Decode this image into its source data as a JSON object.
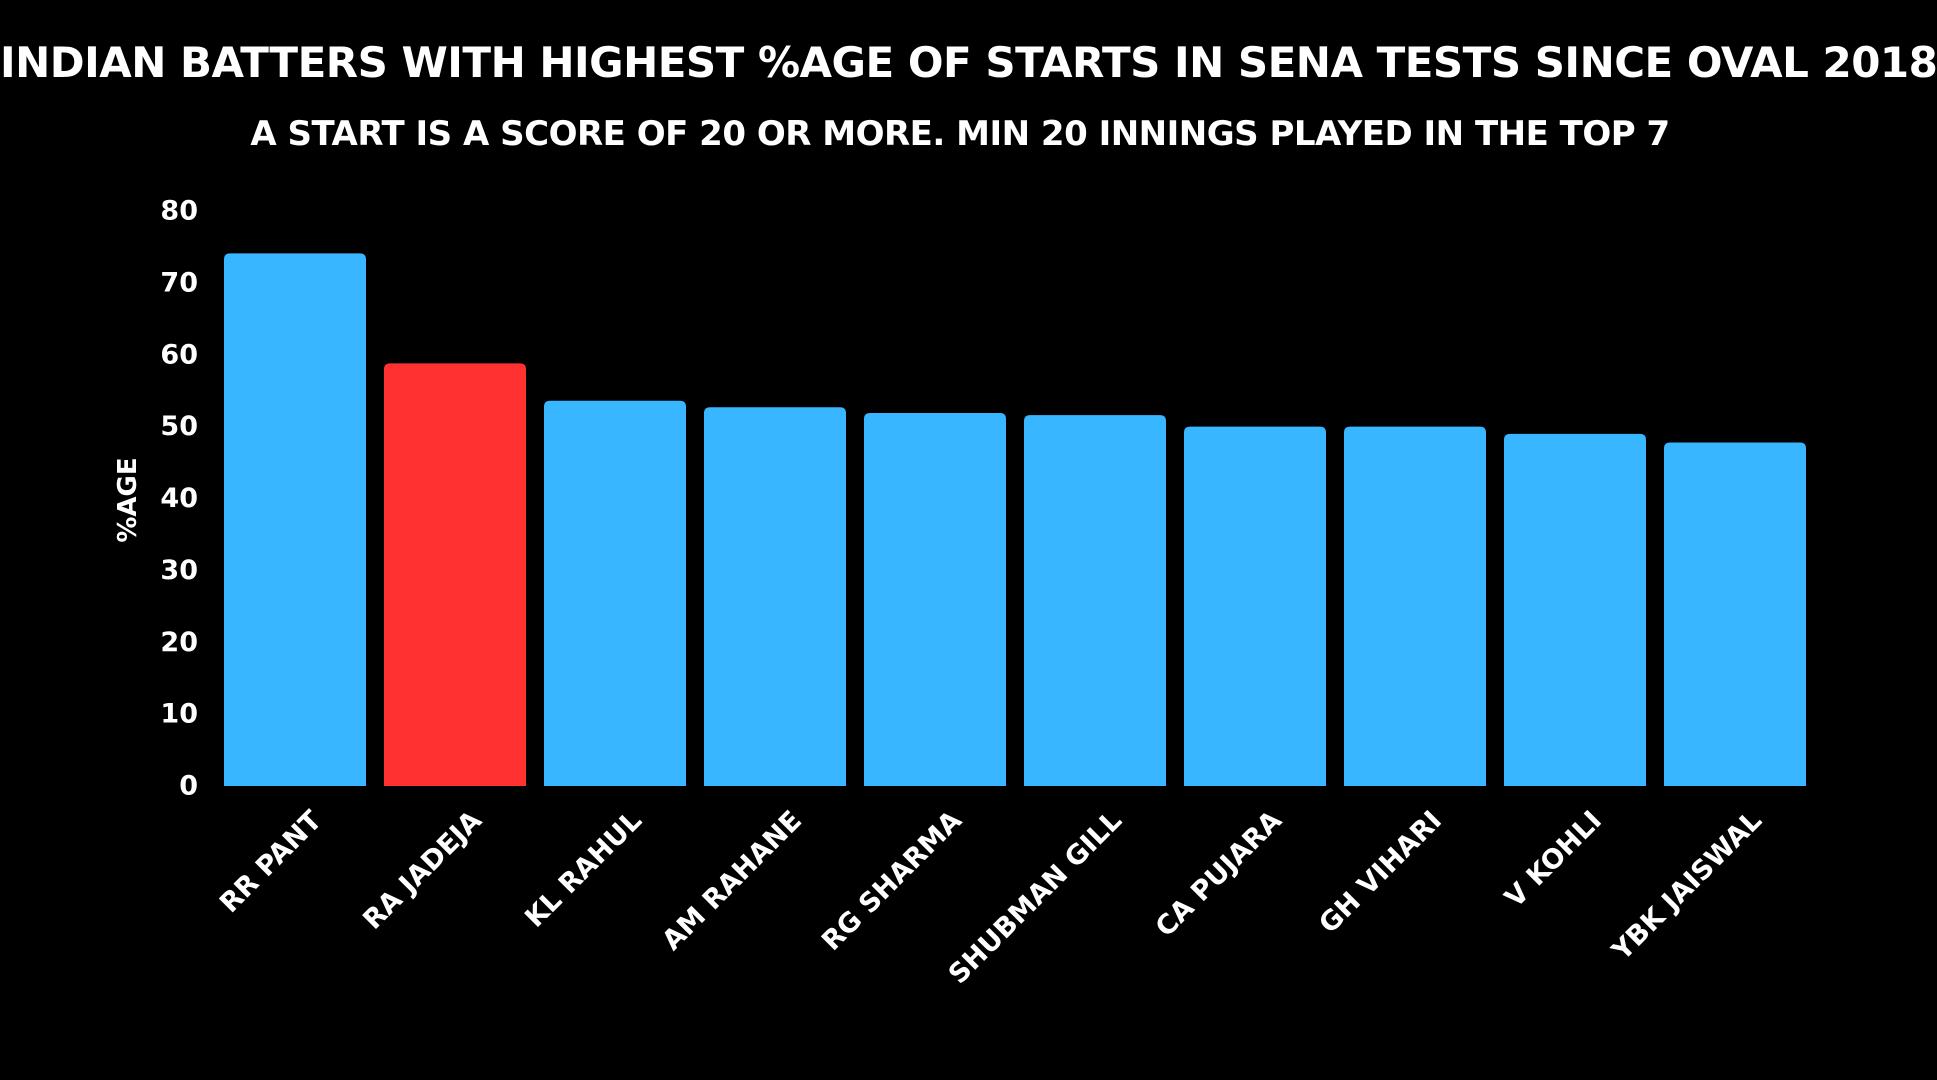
{
  "colors": {
    "background": "#000000",
    "bar_default": "#38B6FF",
    "bar_highlight": "#FF3131",
    "text": "#FFFFFF"
  },
  "chart_data": {
    "type": "bar",
    "title": "Indian batters with highest %age of starts in SENA tests since Oval 2018",
    "subtitle": "A start is a score of 20 or more. Min 20 innings played in the top 7",
    "xlabel": "",
    "ylabel": "%age",
    "ylim": [
      0,
      80
    ],
    "yticks": [
      0,
      10,
      20,
      30,
      40,
      50,
      60,
      70,
      80
    ],
    "grid": false,
    "legend": "none",
    "categories": [
      "RR PANT",
      "RA JADEJA",
      "KL RAHUL",
      "AM RAHANE",
      "RG SHARMA",
      "SHUBMAN GILL",
      "CA PUJARA",
      "GH VIHARI",
      "V KOHLI",
      "YBK JAISWAL"
    ],
    "values": [
      74.1,
      58.8,
      53.6,
      52.7,
      51.9,
      51.6,
      50.0,
      50.0,
      49.0,
      47.8
    ],
    "highlight": [
      "RA JADEJA"
    ]
  }
}
